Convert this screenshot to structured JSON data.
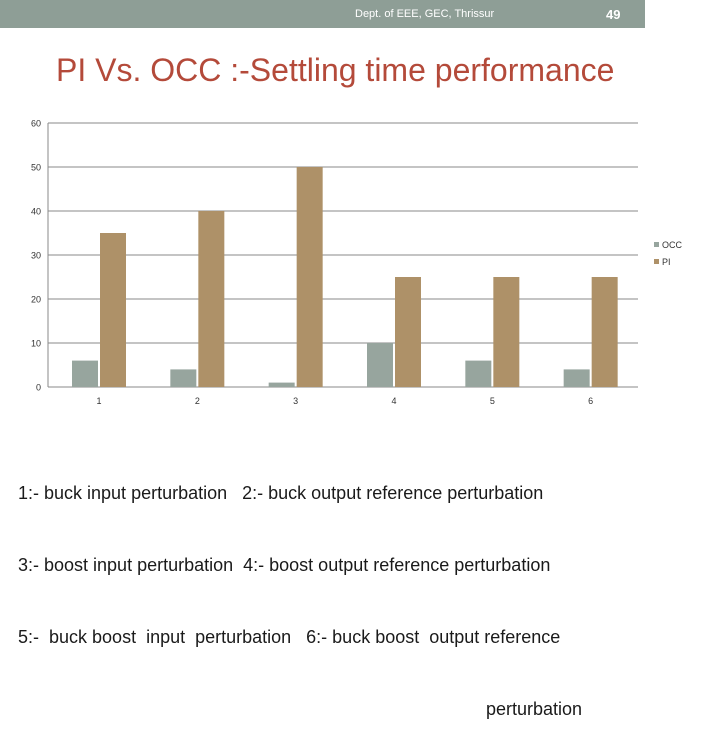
{
  "header": {
    "dept": "Dept. of EEE, GEC, Thrissur",
    "page_number": "49"
  },
  "slide": {
    "title": "PI Vs. OCC :-Settling time performance"
  },
  "colors": {
    "header_bg": "#8e9e96",
    "title": "#b44a3a",
    "occ": "#97a59e",
    "pi": "#ae9168"
  },
  "chart_data": {
    "type": "bar",
    "categories": [
      "1",
      "2",
      "3",
      "4",
      "5",
      "6"
    ],
    "series": [
      {
        "name": "OCC",
        "values": [
          6,
          4,
          1,
          10,
          6,
          4
        ]
      },
      {
        "name": "PI",
        "values": [
          35,
          40,
          50,
          25,
          25,
          25
        ]
      }
    ],
    "ylim": [
      0,
      60
    ],
    "yticks": [
      "0",
      "10",
      "20",
      "30",
      "40",
      "50",
      "60"
    ],
    "grid": true,
    "legend_position": "right"
  },
  "caption": {
    "line1": "1:- buck input perturbation   2:- buck output reference perturbation",
    "line2": "3:- boost input perturbation  4:- boost output reference perturbation",
    "line3": "5:-  buck boost  input  perturbation   6:- buck boost  output reference",
    "line4": "perturbation"
  }
}
